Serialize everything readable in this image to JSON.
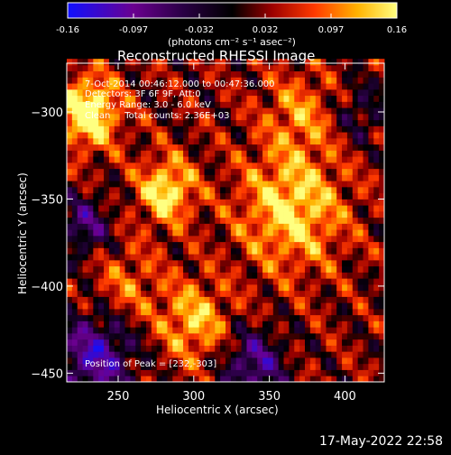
{
  "chart_data": {
    "type": "heatmap",
    "title": "Reconstructed RHESSI Image",
    "xlabel": "Heliocentric X (arcsec)",
    "ylabel": "Heliocentric Y (arcsec)",
    "xlim": [
      216,
      426
    ],
    "ylim": [
      -455,
      -272
    ],
    "x_ticks": [
      250,
      300,
      350,
      400
    ],
    "y_ticks": [
      -300,
      -350,
      -400,
      -450
    ],
    "colorbar": {
      "ticks": [
        "-0.16",
        "-0.097",
        "-0.032",
        "0.032",
        "0.097",
        "0.16"
      ],
      "min": -0.16,
      "max": 0.16,
      "units": "(photons cm⁻² s⁻¹ asec⁻²)"
    },
    "annotations": [
      "7-Oct-2014 00:46:12.000 to 00:47:36.000",
      "Detectors: 3F 6F 9F, Att:0",
      "Energy Range: 3.0 - 6.0 keV",
      "Clean     Total counts: 2.36E+03"
    ],
    "peak_label": "Position of Peak = [232,-303]",
    "peak": [
      232,
      -303
    ],
    "sources": [
      {
        "x": 230,
        "y": -300,
        "amp": 0.16,
        "sigma": 14
      },
      {
        "x": 282,
        "y": -345,
        "amp": 0.13,
        "sigma": 13
      },
      {
        "x": 365,
        "y": -355,
        "amp": 0.12,
        "sigma": 24
      },
      {
        "x": 300,
        "y": -420,
        "amp": 0.1,
        "sigma": 16
      },
      {
        "x": 370,
        "y": -300,
        "amp": 0.07,
        "sigma": 16
      },
      {
        "x": 255,
        "y": -400,
        "amp": 0.06,
        "sigma": 16
      }
    ],
    "background": 0.03,
    "negative_regions": [
      {
        "x": 235,
        "y": -440,
        "amp": -0.14,
        "sigma": 18
      },
      {
        "x": 340,
        "y": -445,
        "amp": -0.12,
        "sigma": 14
      },
      {
        "x": 228,
        "y": -365,
        "amp": -0.1,
        "sigma": 12
      },
      {
        "x": 410,
        "y": -300,
        "amp": -0.06,
        "sigma": 12
      }
    ],
    "colormap": "red-temperature"
  },
  "footer": {
    "timestamp": "17-May-2022 22:58"
  }
}
